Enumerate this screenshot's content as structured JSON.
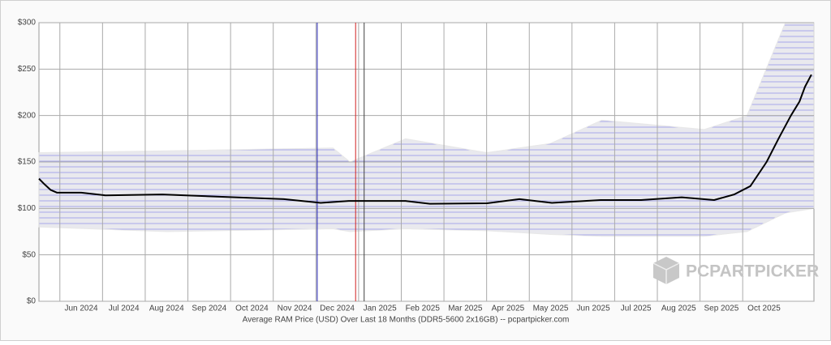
{
  "chart_data": {
    "type": "line",
    "xlabel": "Average RAM Price (USD) Over Last 18 Months (DDR5-5600 2x16GB) -- pcpartpicker.com",
    "watermark": "PCPARTPICKER",
    "xlim": [
      -0.99,
      17.17
    ],
    "xticks": [
      {
        "value": 0,
        "label": "Jun 2024"
      },
      {
        "value": 1,
        "label": "Jul 2024"
      },
      {
        "value": 2,
        "label": "Aug 2024"
      },
      {
        "value": 3,
        "label": "Sep 2024"
      },
      {
        "value": 4,
        "label": "Oct 2024"
      },
      {
        "value": 5,
        "label": "Nov 2024"
      },
      {
        "value": 6,
        "label": "Dec 2024"
      },
      {
        "value": 7,
        "label": "Jan 2025"
      },
      {
        "value": 8,
        "label": "Feb 2025"
      },
      {
        "value": 9,
        "label": "Mar 2025"
      },
      {
        "value": 10,
        "label": "Apr 2025"
      },
      {
        "value": 11,
        "label": "May 2025"
      },
      {
        "value": 12,
        "label": "Jun 2025"
      },
      {
        "value": 13,
        "label": "Jul 2025"
      },
      {
        "value": 14,
        "label": "Aug 2025"
      },
      {
        "value": 15,
        "label": "Sep 2025"
      },
      {
        "value": 16,
        "label": "Oct 2025"
      }
    ],
    "ylim": [
      0,
      300
    ],
    "yticks": [
      {
        "value": 0,
        "label": "$0"
      },
      {
        "value": 50,
        "label": "$50"
      },
      {
        "value": 100,
        "label": "$100"
      },
      {
        "value": 150,
        "label": "$150"
      },
      {
        "value": 200,
        "label": "$200"
      },
      {
        "value": 250,
        "label": "$250"
      },
      {
        "value": 300,
        "label": "$300"
      }
    ],
    "grid": true,
    "band": {
      "color": "#e4e4e4",
      "x": [
        -0.99,
        2.0,
        5.9,
        6.3,
        7.6,
        9.5,
        11.0,
        12.2,
        14.6,
        15.6,
        16.5,
        17.17
      ],
      "lower": [
        80,
        75,
        78,
        75,
        78,
        76,
        72,
        70,
        70,
        75,
        95,
        100
      ],
      "upper": [
        160,
        162,
        165,
        150,
        175,
        160,
        170,
        195,
        185,
        200,
        300,
        300
      ]
    },
    "markers": [
      {
        "x": 5.53,
        "color": "#2020b0"
      },
      {
        "x": 6.43,
        "color": "#d02020"
      },
      {
        "x": 6.63,
        "color": "#404040"
      }
    ],
    "series": [
      {
        "color": "#000000",
        "x": [
          -0.99,
          -0.86,
          -0.72,
          -0.57,
          0,
          0.57,
          1.9,
          3.61,
          4.75,
          5.61,
          6.27,
          7.6,
          8.17,
          9.51,
          10.27,
          11.03,
          12.17,
          13.12,
          14.07,
          14.83,
          15.3,
          15.68,
          16.06,
          16.35,
          16.63,
          16.83,
          16.96,
          17.11
        ],
        "values": [
          132,
          126,
          120,
          117,
          117,
          114,
          115,
          112,
          110,
          106,
          108,
          108,
          105,
          105.5,
          110,
          106,
          109,
          109,
          112,
          109,
          115,
          124,
          150,
          176,
          200,
          215,
          231,
          244
        ]
      }
    ]
  }
}
